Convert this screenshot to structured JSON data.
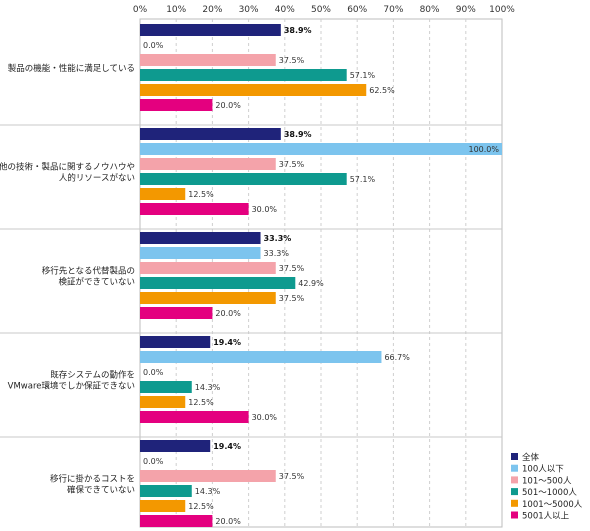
{
  "chart_data": {
    "type": "bar",
    "orientation": "horizontal",
    "xlim": [
      0,
      100
    ],
    "x_ticks": [
      "0%",
      "10%",
      "20%",
      "30%",
      "40%",
      "50%",
      "60%",
      "70%",
      "80%",
      "90%",
      "100%"
    ],
    "grid": "vertical dashed",
    "legend_position": "bottom-right",
    "categories": [
      [
        "製品の機能・性能に満足している"
      ],
      [
        "他の技術・製品に関するノウハウや",
        "人的リソースがない"
      ],
      [
        "移行先となる代替製品の",
        "検証ができていない"
      ],
      [
        "既存システムの動作を",
        "VMware環境でしか保証できない"
      ],
      [
        "移行に掛かるコストを",
        "確保できていない"
      ]
    ],
    "series": [
      {
        "name": "全体",
        "color": "#1f237a",
        "values": [
          38.9,
          38.9,
          33.3,
          19.4,
          19.4
        ]
      },
      {
        "name": "100人以下",
        "color": "#7cc4ee",
        "values": [
          0.0,
          100.0,
          33.3,
          66.7,
          0.0
        ]
      },
      {
        "name": "101〜500人",
        "color": "#f4a3aa",
        "values": [
          37.5,
          37.5,
          37.5,
          0.0,
          37.5
        ]
      },
      {
        "name": "501〜1000人",
        "color": "#0e9a8f",
        "values": [
          57.1,
          57.1,
          42.9,
          14.3,
          14.3
        ]
      },
      {
        "name": "1001〜5000人",
        "color": "#f39800",
        "values": [
          62.5,
          12.5,
          37.5,
          12.5,
          12.5
        ]
      },
      {
        "name": "5001人以上",
        "color": "#e4007f",
        "values": [
          20.0,
          30.0,
          20.0,
          30.0,
          20.0
        ]
      }
    ]
  }
}
